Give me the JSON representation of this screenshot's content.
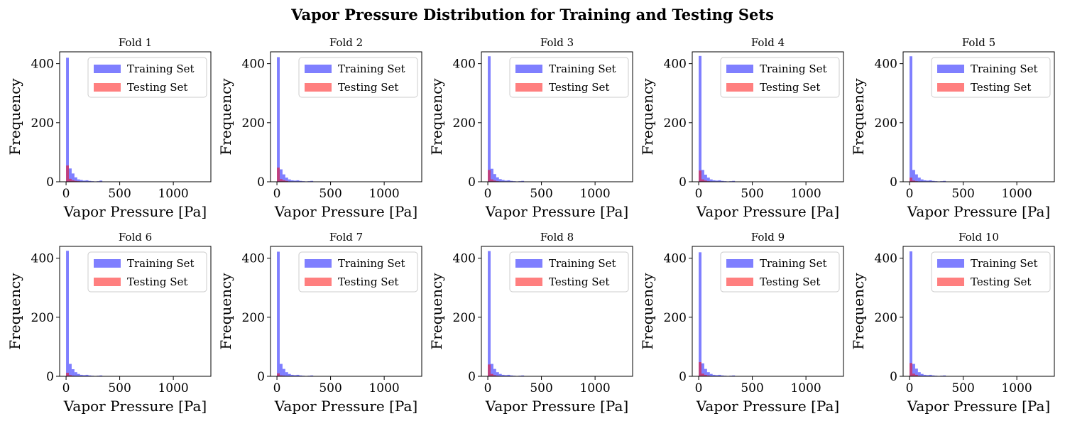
{
  "figure": {
    "title": "Vapor Pressure Distribution for Training and Testing Sets"
  },
  "colors": {
    "training": "#0000ff",
    "testing": "#ff0000",
    "bar_opacity": 0.5
  },
  "chart_data": [
    {
      "type": "bar",
      "title": "Fold 1",
      "xlabel": "Vapor Pressure [Pa]",
      "ylabel": "Frequency",
      "xlim": [
        -60,
        1350
      ],
      "ylim": [
        0,
        440
      ],
      "xticks": [
        0,
        500,
        1000
      ],
      "yticks": [
        0,
        200,
        400
      ],
      "bin_start": 0,
      "bin_width": 26,
      "legend": "top-right",
      "series": [
        {
          "name": "Training Set",
          "values": [
            420,
            45,
            28,
            15,
            8,
            6,
            4,
            5,
            3,
            2,
            1,
            2,
            4,
            1,
            0,
            0,
            0,
            0,
            0,
            0,
            0,
            1,
            0,
            1,
            0,
            1,
            0,
            0,
            0,
            0,
            0,
            0,
            0,
            0,
            0,
            1,
            0,
            1,
            0,
            0,
            0,
            0,
            0,
            0,
            0,
            0,
            0,
            0,
            1
          ]
        },
        {
          "name": "Testing Set",
          "values": [
            55,
            10,
            5,
            3,
            2,
            1,
            1,
            1,
            0,
            1
          ]
        }
      ]
    },
    {
      "type": "bar",
      "title": "Fold 2",
      "xlabel": "Vapor Pressure [Pa]",
      "ylabel": "Frequency",
      "xlim": [
        -60,
        1350
      ],
      "ylim": [
        0,
        440
      ],
      "xticks": [
        0,
        500,
        1000
      ],
      "yticks": [
        0,
        200,
        400
      ],
      "bin_start": 0,
      "bin_width": 26,
      "legend": "top-right",
      "series": [
        {
          "name": "Training Set",
          "values": [
            422,
            42,
            25,
            14,
            8,
            5,
            4,
            5,
            3,
            2,
            1,
            2,
            3,
            1,
            0,
            0,
            0,
            0,
            0,
            0,
            0,
            1,
            0,
            1,
            0,
            1,
            0,
            0,
            0,
            0,
            0,
            0,
            0,
            0,
            0,
            1,
            0,
            1,
            0,
            0,
            0,
            0,
            0,
            0,
            0,
            0,
            0,
            0,
            1
          ]
        },
        {
          "name": "Testing Set",
          "values": [
            48,
            9,
            5,
            3,
            1,
            1,
            1,
            0,
            1,
            0
          ]
        }
      ]
    },
    {
      "type": "bar",
      "title": "Fold 3",
      "xlabel": "Vapor Pressure [Pa]",
      "ylabel": "Frequency",
      "xlim": [
        -60,
        1350
      ],
      "ylim": [
        0,
        440
      ],
      "xticks": [
        0,
        500,
        1000
      ],
      "yticks": [
        0,
        200,
        400
      ],
      "bin_start": 0,
      "bin_width": 26,
      "legend": "top-right",
      "series": [
        {
          "name": "Training Set",
          "values": [
            425,
            44,
            26,
            15,
            9,
            6,
            4,
            5,
            3,
            2,
            1,
            2,
            3,
            1,
            0,
            0,
            0,
            0,
            0,
            0,
            0,
            1,
            0,
            1,
            0,
            1,
            0,
            0,
            0,
            0,
            0,
            0,
            0,
            0,
            0,
            1,
            0,
            1,
            0,
            0,
            0,
            0,
            0,
            0,
            0,
            0,
            0,
            0,
            1
          ]
        },
        {
          "name": "Testing Set",
          "values": [
            40,
            8,
            4,
            2,
            1,
            1,
            0,
            1,
            0,
            0
          ]
        }
      ]
    },
    {
      "type": "bar",
      "title": "Fold 4",
      "xlabel": "Vapor Pressure [Pa]",
      "ylabel": "Frequency",
      "xlim": [
        -60,
        1350
      ],
      "ylim": [
        0,
        440
      ],
      "xticks": [
        0,
        500,
        1000
      ],
      "yticks": [
        0,
        200,
        400
      ],
      "bin_start": 0,
      "bin_width": 26,
      "legend": "top-right",
      "series": [
        {
          "name": "Training Set",
          "values": [
            426,
            40,
            24,
            14,
            8,
            5,
            4,
            5,
            3,
            2,
            1,
            2,
            3,
            1,
            0,
            0,
            0,
            0,
            0,
            0,
            0,
            1,
            0,
            1,
            0,
            1,
            0,
            0,
            0,
            0,
            0,
            0,
            0,
            0,
            0,
            1,
            0,
            1,
            0,
            0,
            0,
            0,
            0,
            0,
            0,
            0,
            0,
            0,
            1
          ]
        },
        {
          "name": "Testing Set",
          "values": [
            38,
            8,
            4,
            2,
            1,
            1,
            0,
            1,
            0,
            0
          ]
        }
      ]
    },
    {
      "type": "bar",
      "title": "Fold 5",
      "xlabel": "Vapor Pressure [Pa]",
      "ylabel": "Frequency",
      "xlim": [
        -60,
        1350
      ],
      "ylim": [
        0,
        440
      ],
      "xticks": [
        0,
        500,
        1000
      ],
      "yticks": [
        0,
        200,
        400
      ],
      "bin_start": 0,
      "bin_width": 26,
      "legend": "top-right",
      "series": [
        {
          "name": "Training Set",
          "values": [
            425,
            40,
            25,
            14,
            8,
            5,
            4,
            5,
            3,
            2,
            1,
            2,
            3,
            1,
            0,
            0,
            0,
            0,
            0,
            0,
            0,
            1,
            0,
            1,
            0,
            1,
            0,
            0,
            0,
            0,
            0,
            0,
            0,
            0,
            0,
            1,
            0,
            1,
            0,
            0,
            0,
            0,
            0,
            0,
            0,
            0,
            0,
            0,
            1
          ]
        },
        {
          "name": "Testing Set",
          "values": [
            14,
            4,
            2,
            1,
            1,
            0,
            0,
            1,
            0,
            0
          ]
        }
      ]
    },
    {
      "type": "bar",
      "title": "Fold 6",
      "xlabel": "Vapor Pressure [Pa]",
      "ylabel": "Frequency",
      "xlim": [
        -60,
        1350
      ],
      "ylim": [
        0,
        440
      ],
      "xticks": [
        0,
        500,
        1000
      ],
      "yticks": [
        0,
        200,
        400
      ],
      "bin_start": 0,
      "bin_width": 26,
      "legend": "top-right",
      "series": [
        {
          "name": "Training Set",
          "values": [
            425,
            42,
            24,
            14,
            8,
            5,
            4,
            5,
            3,
            2,
            1,
            2,
            3,
            1,
            0,
            0,
            0,
            0,
            0,
            0,
            0,
            1,
            0,
            1,
            0,
            1,
            0,
            0,
            0,
            0,
            0,
            0,
            0,
            0,
            0,
            1,
            0,
            1,
            0,
            0,
            0,
            0,
            0,
            0,
            0,
            0,
            0,
            0,
            1
          ]
        },
        {
          "name": "Testing Set",
          "values": [
            12,
            4,
            2,
            1,
            0,
            1,
            0,
            0,
            0,
            0
          ]
        }
      ]
    },
    {
      "type": "bar",
      "title": "Fold 7",
      "xlabel": "Vapor Pressure [Pa]",
      "ylabel": "Frequency",
      "xlim": [
        -60,
        1350
      ],
      "ylim": [
        0,
        440
      ],
      "xticks": [
        0,
        500,
        1000
      ],
      "yticks": [
        0,
        200,
        400
      ],
      "bin_start": 0,
      "bin_width": 26,
      "legend": "top-right",
      "series": [
        {
          "name": "Training Set",
          "values": [
            422,
            42,
            25,
            14,
            8,
            5,
            4,
            5,
            3,
            2,
            1,
            2,
            3,
            1,
            0,
            0,
            0,
            0,
            0,
            0,
            0,
            1,
            0,
            1,
            0,
            1,
            0,
            0,
            0,
            0,
            0,
            0,
            0,
            0,
            0,
            1,
            0,
            1,
            0,
            0,
            0,
            0,
            0,
            0,
            0,
            0,
            0,
            0,
            1
          ]
        },
        {
          "name": "Testing Set",
          "values": [
            10,
            3,
            2,
            1,
            0,
            1,
            0,
            0,
            0,
            0
          ]
        }
      ]
    },
    {
      "type": "bar",
      "title": "Fold 8",
      "xlabel": "Vapor Pressure [Pa]",
      "ylabel": "Frequency",
      "xlim": [
        -60,
        1350
      ],
      "ylim": [
        0,
        440
      ],
      "xticks": [
        0,
        500,
        1000
      ],
      "yticks": [
        0,
        200,
        400
      ],
      "bin_start": 0,
      "bin_width": 26,
      "legend": "top-right",
      "series": [
        {
          "name": "Training Set",
          "values": [
            424,
            42,
            25,
            14,
            8,
            5,
            4,
            5,
            3,
            2,
            1,
            2,
            3,
            1,
            0,
            0,
            0,
            0,
            0,
            0,
            0,
            1,
            0,
            1,
            0,
            1,
            0,
            0,
            0,
            0,
            0,
            0,
            0,
            0,
            0,
            1,
            0,
            1,
            0,
            0,
            0,
            0,
            0,
            0,
            0,
            0,
            0,
            0,
            1
          ]
        },
        {
          "name": "Testing Set",
          "values": [
            40,
            8,
            4,
            2,
            1,
            1,
            0,
            1,
            0,
            0
          ]
        }
      ]
    },
    {
      "type": "bar",
      "title": "Fold 9",
      "xlabel": "Vapor Pressure [Pa]",
      "ylabel": "Frequency",
      "xlim": [
        -60,
        1350
      ],
      "ylim": [
        0,
        440
      ],
      "xticks": [
        0,
        500,
        1000
      ],
      "yticks": [
        0,
        200,
        400
      ],
      "bin_start": 0,
      "bin_width": 26,
      "legend": "top-right",
      "series": [
        {
          "name": "Training Set",
          "values": [
            420,
            44,
            25,
            14,
            8,
            5,
            4,
            5,
            3,
            2,
            1,
            2,
            3,
            1,
            0,
            0,
            0,
            0,
            0,
            0,
            0,
            1,
            0,
            1,
            0,
            1,
            0,
            0,
            0,
            0,
            0,
            0,
            0,
            0,
            0,
            1,
            0,
            1,
            0,
            0,
            0,
            0,
            0,
            0,
            0,
            0,
            0,
            0,
            1
          ]
        },
        {
          "name": "Testing Set",
          "values": [
            48,
            9,
            5,
            3,
            1,
            1,
            1,
            0,
            1,
            0
          ]
        }
      ]
    },
    {
      "type": "bar",
      "title": "Fold 10",
      "xlabel": "Vapor Pressure [Pa]",
      "ylabel": "Frequency",
      "xlim": [
        -60,
        1350
      ],
      "ylim": [
        0,
        440
      ],
      "xticks": [
        0,
        500,
        1000
      ],
      "yticks": [
        0,
        200,
        400
      ],
      "bin_start": 0,
      "bin_width": 26,
      "legend": "top-right",
      "series": [
        {
          "name": "Training Set",
          "values": [
            423,
            42,
            26,
            14,
            8,
            5,
            4,
            5,
            3,
            2,
            1,
            2,
            3,
            1,
            0,
            0,
            0,
            0,
            0,
            0,
            0,
            1,
            0,
            1,
            0,
            1,
            0,
            0,
            0,
            0,
            0,
            0,
            0,
            0,
            0,
            1,
            0,
            1,
            0,
            0,
            0,
            0,
            0,
            0,
            0,
            0,
            0,
            0,
            1
          ]
        },
        {
          "name": "Testing Set",
          "values": [
            45,
            9,
            5,
            2,
            1,
            1,
            1,
            0,
            1,
            0
          ]
        }
      ]
    }
  ]
}
